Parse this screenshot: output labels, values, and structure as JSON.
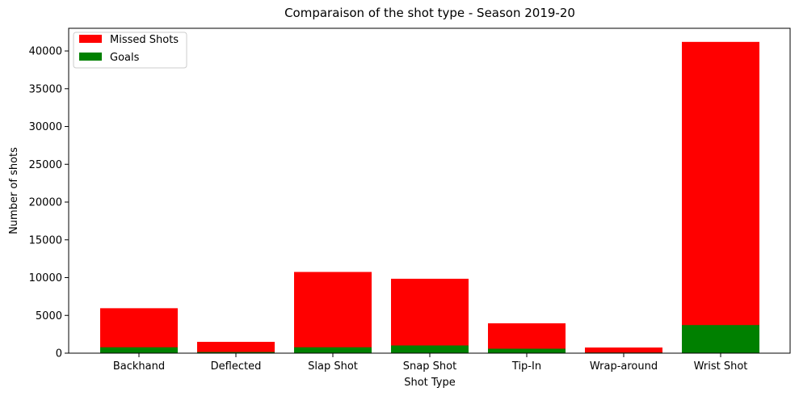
{
  "chart_data": {
    "type": "bar",
    "stacked": true,
    "title": "Comparaison of the shot type - Season 2019-20",
    "xlabel": "Shot Type",
    "ylabel": "Number of shots",
    "categories": [
      "Backhand",
      "Deflected",
      "Slap Shot",
      "Snap Shot",
      "Tip-In",
      "Wrap-around",
      "Wrist Shot"
    ],
    "series": [
      {
        "name": "Missed Shots",
        "color": "#ff0000",
        "values": [
          5950,
          1500,
          10750,
          9850,
          3950,
          750,
          41200
        ]
      },
      {
        "name": "Goals",
        "color": "#008000",
        "values": [
          780,
          150,
          780,
          1020,
          590,
          80,
          3720
        ]
      }
    ],
    "ylim": [
      0,
      43000
    ],
    "yticks": [
      0,
      5000,
      10000,
      15000,
      20000,
      25000,
      30000,
      35000,
      40000
    ],
    "legend_position": "top-left",
    "grid": false
  }
}
